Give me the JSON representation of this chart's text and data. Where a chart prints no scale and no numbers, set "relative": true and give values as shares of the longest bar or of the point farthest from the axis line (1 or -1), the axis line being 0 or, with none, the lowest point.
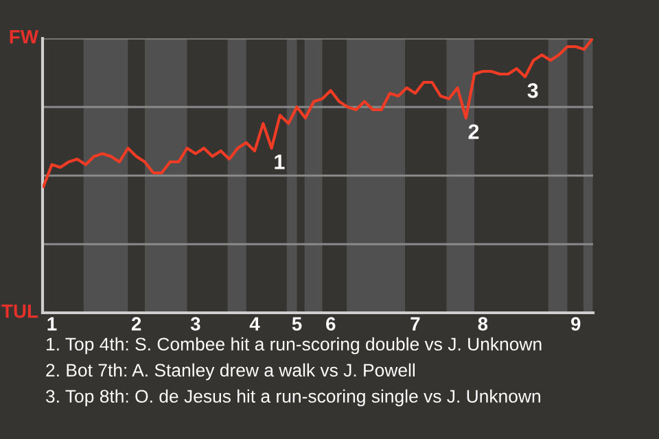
{
  "chart_data": {
    "type": "line",
    "relative": true,
    "categories": [
      null,
      "1",
      null,
      null,
      null,
      null,
      null,
      null,
      null,
      null,
      null,
      "2",
      null,
      null,
      null,
      null,
      null,
      null,
      "3",
      null,
      null,
      null,
      null,
      null,
      null,
      "4",
      null,
      null,
      null,
      null,
      "5",
      null,
      null,
      null,
      "6",
      null,
      null,
      null,
      null,
      null,
      null,
      null,
      null,
      null,
      "7",
      null,
      null,
      null,
      null,
      null,
      null,
      null,
      "8",
      null,
      null,
      null,
      null,
      null,
      null,
      null,
      null,
      null,
      null,
      "9",
      null,
      null
    ],
    "series": [
      {
        "color": "#f03c24",
        "values": [
          0.46,
          0.54,
          0.53,
          0.55,
          0.56,
          0.54,
          0.57,
          0.58,
          0.57,
          0.55,
          0.6,
          0.57,
          0.55,
          0.51,
          0.51,
          0.55,
          0.55,
          0.6,
          0.58,
          0.6,
          0.57,
          0.59,
          0.56,
          0.6,
          0.62,
          0.59,
          0.69,
          0.6,
          0.72,
          0.69,
          0.75,
          0.71,
          0.77,
          0.78,
          0.81,
          0.77,
          0.75,
          0.74,
          0.77,
          0.74,
          0.74,
          0.8,
          0.79,
          0.82,
          0.8,
          0.84,
          0.84,
          0.79,
          0.78,
          0.82,
          0.71,
          0.87,
          0.88,
          0.88,
          0.87,
          0.87,
          0.89,
          0.86,
          0.92,
          0.94,
          0.92,
          0.94,
          0.97,
          0.97,
          0.96,
          1.0
        ]
      }
    ],
    "legend": false,
    "marker": "none",
    "line_style": "solid",
    "ref_lines": [
      {
        "axis": "y",
        "value": 0.25,
        "color": "#8a8a8a"
      },
      {
        "axis": "y",
        "value": 0.5,
        "color": "#8a8a8a"
      },
      {
        "axis": "y",
        "value": 0.75,
        "color": "#8a8a8a"
      },
      {
        "axis": "y",
        "value": 1,
        "color": "#8a8a8a"
      }
    ],
    "annotations": [
      "FW",
      "TUL",
      {
        "text": "1",
        "y": 0.6
      },
      {
        "text": "2",
        "y": 0.71
      },
      {
        "text": "3",
        "y": 0.86
      },
      "1. Top 4th: S. Combee hit a run-scoring double vs J. Unknown",
      "2. Bot 7th: A. Stanley drew a walk vs J. Powell",
      "3. Top 8th: O. de Jesus hit a run-scoring single vs J. Unknown"
    ]
  }
}
